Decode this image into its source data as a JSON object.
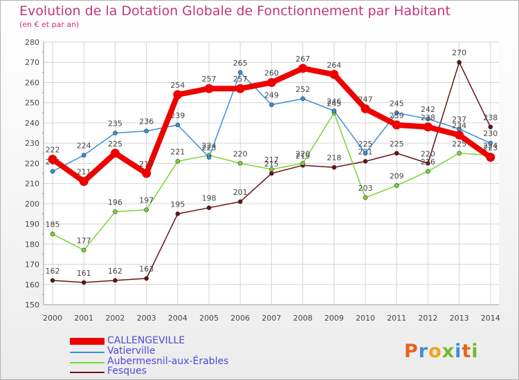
{
  "title": "Evolution de la Dotation Globale de Fonctionnement par Habitant",
  "subtitle": "(en € et par an)",
  "logo": "Proxiti",
  "chart_data": {
    "type": "line",
    "title": "Evolution de la Dotation Globale de Fonctionnement par Habitant",
    "ylabel": "(en € et par an)",
    "xlabel": "",
    "ylim": [
      150,
      280
    ],
    "yticks": [
      150,
      160,
      170,
      180,
      190,
      200,
      210,
      220,
      230,
      240,
      250,
      260,
      270,
      280
    ],
    "x": [
      2000,
      2001,
      2002,
      2003,
      2004,
      2005,
      2006,
      2007,
      2008,
      2009,
      2010,
      2011,
      2012,
      2013,
      2014
    ],
    "grid": true,
    "series": [
      {
        "name": "CALLENGEVILLE",
        "color": "#ee0000",
        "values": [
          222,
          211,
          225,
          215,
          254,
          257,
          257,
          260,
          267,
          264,
          247,
          239,
          238,
          234,
          223
        ]
      },
      {
        "name": "Vatierville",
        "color": "#3a8ed6",
        "values": [
          216,
          224,
          235,
          236,
          239,
          223,
          265,
          249,
          252,
          246,
          225,
          245,
          242,
          237,
          230
        ]
      },
      {
        "name": "Aubermesnil-aux-Érables",
        "color": "#77d631",
        "values": [
          185,
          177,
          196,
          197,
          221,
          224,
          220,
          217,
          220,
          245,
          203,
          209,
          216,
          225,
          224
        ]
      },
      {
        "name": "Fesques",
        "color": "#6a1010",
        "values": [
          162,
          161,
          162,
          163,
          195,
          198,
          201,
          215,
          219,
          218,
          221,
          225,
          220,
          270,
          238
        ]
      }
    ]
  }
}
